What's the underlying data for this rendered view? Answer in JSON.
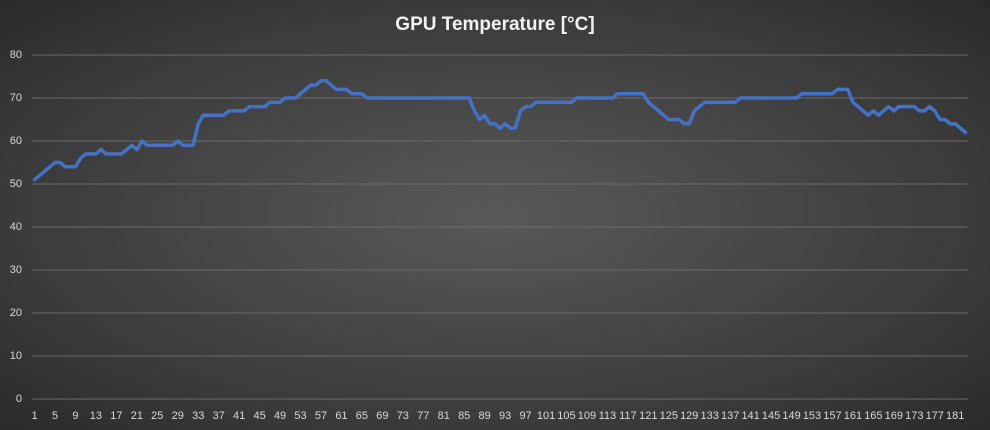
{
  "chart_data": {
    "type": "line",
    "title": "GPU Temperature [°C]",
    "categories": [
      "1",
      null,
      null,
      null,
      "5",
      null,
      null,
      null,
      "9",
      null,
      null,
      null,
      "13",
      null,
      null,
      null,
      "17",
      null,
      null,
      null,
      "21",
      null,
      null,
      null,
      "25",
      null,
      null,
      null,
      "29",
      null,
      null,
      null,
      "33",
      null,
      null,
      null,
      "37",
      null,
      null,
      null,
      "41",
      null,
      null,
      null,
      "45",
      null,
      null,
      null,
      "49",
      null,
      null,
      null,
      "53",
      null,
      null,
      null,
      "57",
      null,
      null,
      null,
      "61",
      null,
      null,
      null,
      "65",
      null,
      null,
      null,
      "69",
      null,
      null,
      null,
      "73",
      null,
      null,
      null,
      "77",
      null,
      null,
      null,
      "81",
      null,
      null,
      null,
      "85",
      null,
      null,
      null,
      "89",
      null,
      null,
      null,
      "93",
      null,
      null,
      null,
      "97",
      null,
      null,
      null,
      "101",
      null,
      null,
      null,
      "105",
      null,
      null,
      null,
      "109",
      null,
      null,
      null,
      "113",
      null,
      null,
      null,
      "117",
      null,
      null,
      null,
      "121",
      null,
      null,
      null,
      "125",
      null,
      null,
      null,
      "129",
      null,
      null,
      null,
      "133",
      null,
      null,
      null,
      "137",
      null,
      null,
      null,
      "141",
      null,
      null,
      null,
      "145",
      null,
      null,
      null,
      "149",
      null,
      null,
      null,
      "153",
      null,
      null,
      null,
      "157",
      null,
      null,
      null,
      "161",
      null,
      null,
      null,
      "165",
      null,
      null,
      null,
      "169",
      null,
      null,
      null,
      "173",
      null,
      null,
      null,
      "177",
      null,
      null,
      null,
      "181",
      null,
      null
    ],
    "values": [
      51,
      52,
      53,
      54,
      55,
      55,
      54,
      54,
      54,
      56,
      57,
      57,
      57,
      58,
      57,
      57,
      57,
      57,
      58,
      59,
      58,
      60,
      59,
      59,
      59,
      59,
      59,
      59,
      60,
      59,
      59,
      59,
      64,
      66,
      66,
      66,
      66,
      66,
      67,
      67,
      67,
      67,
      68,
      68,
      68,
      68,
      69,
      69,
      69,
      70,
      70,
      70,
      71,
      72,
      73,
      73,
      74,
      74,
      73,
      72,
      72,
      72,
      71,
      71,
      71,
      70,
      70,
      70,
      70,
      70,
      70,
      70,
      70,
      70,
      70,
      70,
      70,
      70,
      70,
      70,
      70,
      70,
      70,
      70,
      70,
      70,
      67,
      65,
      66,
      64,
      64,
      63,
      64,
      63,
      63,
      67,
      68,
      68,
      69,
      69,
      69,
      69,
      69,
      69,
      69,
      69,
      70,
      70,
      70,
      70,
      70,
      70,
      70,
      70,
      71,
      71,
      71,
      71,
      71,
      71,
      69,
      68,
      67,
      66,
      65,
      65,
      65,
      64,
      64,
      67,
      68,
      69,
      69,
      69,
      69,
      69,
      69,
      69,
      70,
      70,
      70,
      70,
      70,
      70,
      70,
      70,
      70,
      70,
      70,
      70,
      71,
      71,
      71,
      71,
      71,
      71,
      71,
      72,
      72,
      72,
      69,
      68,
      67,
      66,
      67,
      66,
      67,
      68,
      67,
      68,
      68,
      68,
      68,
      67,
      67,
      68,
      67,
      65,
      65,
      64,
      64,
      63,
      62
    ],
    "color": "#4472c4",
    "ylim": [
      0,
      80
    ],
    "yticks": [
      0,
      10,
      20,
      30,
      40,
      50,
      60,
      70,
      80
    ],
    "grid": true
  }
}
